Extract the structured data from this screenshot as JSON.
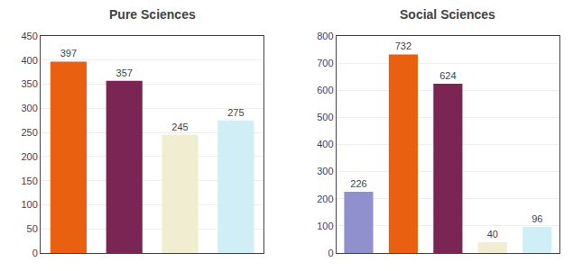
{
  "chart_data": [
    {
      "type": "bar",
      "title": "Pure Sciences",
      "categories": [
        null,
        null,
        null,
        null
      ],
      "values": [
        397,
        357,
        245,
        275
      ],
      "colors": [
        "#E86010",
        "#7B2555",
        "#F0EDD0",
        "#D0EEF5"
      ],
      "ylim": [
        0,
        450
      ],
      "yticks": [
        0,
        50,
        100,
        150,
        200,
        250,
        300,
        350,
        400,
        450
      ],
      "grid": true,
      "data_labels": true,
      "tick_labels": "y"
    },
    {
      "type": "bar",
      "title": "Social Sciences",
      "categories": [
        null,
        null,
        null,
        null,
        null
      ],
      "values": [
        226,
        732,
        624,
        40,
        96
      ],
      "colors": [
        "#9090CC",
        "#E86010",
        "#7B2555",
        "#F0EDD0",
        "#D0EEF5"
      ],
      "ylim": [
        0,
        800
      ],
      "yticks": [
        0,
        100,
        200,
        300,
        400,
        500,
        600,
        700,
        800
      ],
      "grid": true,
      "data_labels": true,
      "tick_labels": "y"
    }
  ]
}
